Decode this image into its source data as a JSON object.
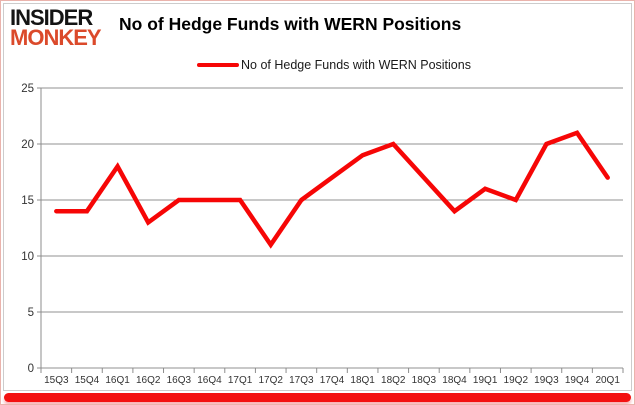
{
  "header": {
    "logo_line1": "INSIDER",
    "logo_line2": "MONKEY",
    "title": "No of Hedge Funds with WERN Positions"
  },
  "legend": {
    "label": "No of Hedge Funds with WERN Positions"
  },
  "colors": {
    "line": "#f60606",
    "logo_black": "#141414",
    "logo_monkey": "#db4a2b",
    "grid": "#919191",
    "axis_line": "#8c8c8c",
    "axis_text": "#333333",
    "bottom_bar": "#f31111",
    "frame_border": "#cccccc"
  },
  "chart_data": {
    "type": "line",
    "title": "No of Hedge Funds with WERN Positions",
    "categories": [
      "15Q3",
      "15Q4",
      "16Q1",
      "16Q2",
      "16Q3",
      "16Q4",
      "17Q1",
      "17Q2",
      "17Q3",
      "17Q4",
      "18Q1",
      "18Q2",
      "18Q3",
      "18Q4",
      "19Q1",
      "19Q2",
      "19Q3",
      "19Q4",
      "20Q1"
    ],
    "series": [
      {
        "name": "No of Hedge Funds with WERN Positions",
        "values": [
          14,
          14,
          18,
          13,
          15,
          15,
          15,
          11,
          15,
          17,
          19,
          20,
          17,
          14,
          16,
          15,
          20,
          21,
          17
        ]
      }
    ],
    "xlabel": "",
    "ylabel": "",
    "ylim": [
      0,
      25
    ],
    "yticks": [
      0,
      5,
      10,
      15,
      20,
      25
    ],
    "grid": true,
    "legend_position": "top"
  }
}
